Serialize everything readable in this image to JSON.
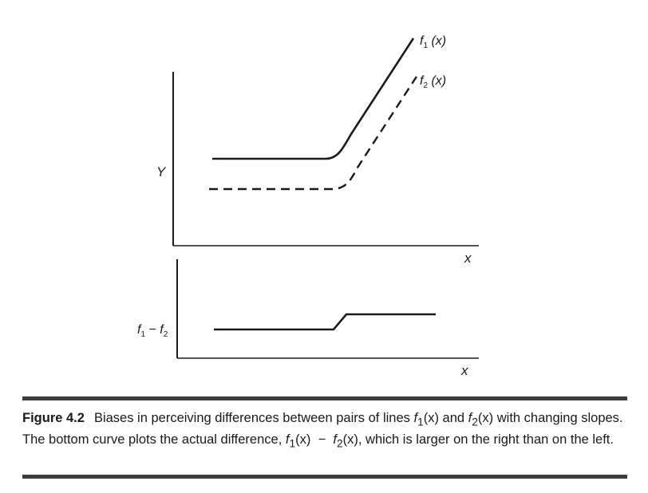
{
  "figure": {
    "upper_panel": {
      "y_axis_label": "Y",
      "x_axis_label": "x",
      "curve1_label": {
        "base": "f",
        "sub": "1",
        "arg": " (x)"
      },
      "curve2_label": {
        "base": "f",
        "sub": "2",
        "arg": " (x)"
      },
      "curve1_style": "solid",
      "curve2_style": "dashed"
    },
    "lower_panel": {
      "y_axis_label": {
        "a": "f",
        "a_sub": "1",
        "minus": " − ",
        "b": "f",
        "b_sub": "2"
      },
      "x_axis_label": "x",
      "curve_style": "solid"
    }
  },
  "caption": {
    "figure_number": "Figure 4.2",
    "text_1": "Biases in perceiving differences between pairs of lines ",
    "f": "f",
    "sub1": "1",
    "sub2": "2",
    "arg": "(x)",
    "and": " and ",
    "text_2": " with changing slopes. The bottom curve plots the actual difference, ",
    "minus": "−",
    "text_3": ", which is larger on the right than on the left."
  },
  "colors": {
    "ink": "#1a1a1a",
    "rule": "#3d3d3d",
    "background": "#ffffff"
  }
}
